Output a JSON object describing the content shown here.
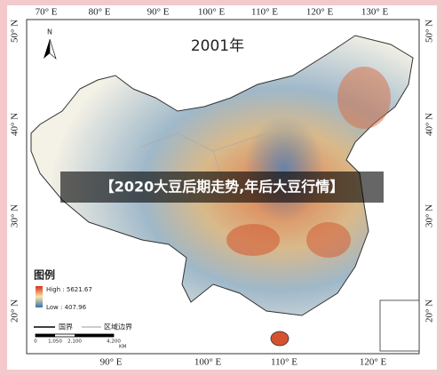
{
  "map": {
    "title": "2001年",
    "north": "N",
    "lon_top": [
      "70° E",
      "80° E",
      "90° E",
      "100° E",
      "110° E",
      "120° E",
      "130° E"
    ],
    "lon_bottom": [
      "90° E",
      "100° E",
      "110° E",
      "120° E"
    ],
    "lat_left": [
      "50° N",
      "40° N",
      "30° N",
      "20° N"
    ],
    "lat_right": [
      "50° N",
      "40° N",
      "30° N",
      "20° N"
    ],
    "legend": {
      "title": "图例",
      "high": "High : 5621.67",
      "low": "Low : 407.96",
      "national_border": "国界",
      "regional_border": "区域边界"
    },
    "scale": {
      "ticks": [
        "0",
        "1,050",
        "2,100",
        "4,200"
      ],
      "unit": "KM"
    }
  },
  "banner": "【2020大豆后期走势,年后大豆行情】"
}
